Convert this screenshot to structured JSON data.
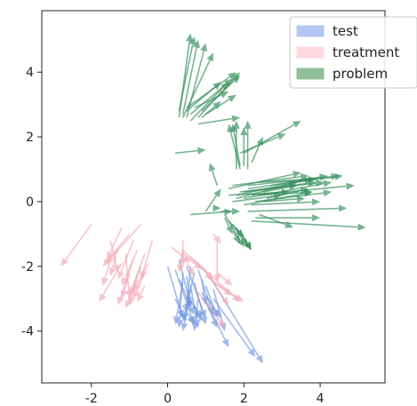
{
  "chart_data": {
    "type": "scatter",
    "title": "",
    "xlabel": "",
    "ylabel": "",
    "xlim": [
      -3.3,
      5.7
    ],
    "ylim": [
      -5.6,
      5.9
    ],
    "xticks": [
      "-2",
      "0",
      "2",
      "4"
    ],
    "yticks": [
      "-4",
      "-2",
      "0",
      "2",
      "4"
    ],
    "xtick_values": [
      -2,
      0,
      2,
      4
    ],
    "ytick_values": [
      -4,
      -2,
      0,
      2,
      4
    ],
    "grid": false,
    "legend_position": "top-right",
    "series": [
      {
        "name": "test",
        "color": "#6f95e0",
        "legend_color": "#b3c7f3",
        "arrows": [
          [
            0.0,
            -2.0,
            0.4,
            -3.6
          ],
          [
            0.2,
            -2.1,
            0.7,
            -3.8
          ],
          [
            0.4,
            -2.2,
            0.3,
            -3.9
          ],
          [
            0.5,
            -2.0,
            1.0,
            -3.6
          ],
          [
            0.3,
            -1.8,
            0.6,
            -3.2
          ],
          [
            0.6,
            -2.0,
            0.5,
            -3.4
          ],
          [
            0.8,
            -2.1,
            1.2,
            -3.5
          ],
          [
            0.7,
            -2.2,
            0.4,
            -3.7
          ],
          [
            0.4,
            -2.5,
            0.2,
            -3.8
          ],
          [
            0.6,
            -2.6,
            0.8,
            -3.9
          ],
          [
            0.9,
            -2.4,
            1.0,
            -3.2
          ],
          [
            1.0,
            -2.6,
            1.3,
            -3.6
          ],
          [
            0.9,
            -2.8,
            1.6,
            -4.5
          ],
          [
            1.2,
            -2.7,
            1.5,
            -4.0
          ],
          [
            0.5,
            -2.3,
            0.6,
            -3.3
          ],
          [
            0.3,
            -2.4,
            0.7,
            -3.5
          ],
          [
            0.7,
            -2.5,
            1.0,
            -3.8
          ],
          [
            1.1,
            -2.3,
            2.5,
            -5.0
          ],
          [
            1.2,
            -3.0,
            2.3,
            -4.8
          ],
          [
            0.5,
            -2.9,
            0.9,
            -3.6
          ],
          [
            0.8,
            -3.0,
            0.7,
            -4.0
          ],
          [
            0.2,
            -3.0,
            0.5,
            -3.7
          ],
          [
            0.6,
            -2.7,
            0.4,
            -4.0
          ],
          [
            1.0,
            -3.1,
            1.3,
            -3.9
          ],
          [
            0.4,
            -3.2,
            0.7,
            -3.8
          ],
          [
            0.7,
            -3.2,
            0.9,
            -3.7
          ],
          [
            1.0,
            -2.9,
            1.4,
            -3.6
          ]
        ]
      },
      {
        "name": "treatment",
        "color": "#f4a6b5",
        "legend_color": "#ffd7de",
        "arrows": [
          [
            -2.0,
            -0.7,
            -2.8,
            -2.0
          ],
          [
            -1.2,
            -0.8,
            -1.6,
            -1.8
          ],
          [
            -0.7,
            -0.7,
            -1.6,
            -1.9
          ],
          [
            -1.0,
            -1.0,
            -1.7,
            -2.0
          ],
          [
            -1.5,
            -1.2,
            -1.3,
            -2.2
          ],
          [
            -0.9,
            -1.2,
            -1.3,
            -2.4
          ],
          [
            -0.8,
            -1.5,
            -1.2,
            -2.6
          ],
          [
            -0.6,
            -1.6,
            -1.0,
            -2.9
          ],
          [
            -1.1,
            -1.6,
            -1.0,
            -3.0
          ],
          [
            -1.2,
            -1.9,
            -1.8,
            -3.1
          ],
          [
            -0.9,
            -1.8,
            -1.3,
            -3.2
          ],
          [
            -0.7,
            -2.0,
            -1.1,
            -3.3
          ],
          [
            -0.5,
            -1.9,
            -0.9,
            -2.8
          ],
          [
            -1.0,
            -2.2,
            -1.2,
            -3.0
          ],
          [
            -0.6,
            -2.2,
            -0.9,
            -3.0
          ],
          [
            -1.3,
            -1.4,
            -1.5,
            -2.3
          ],
          [
            -0.8,
            -2.4,
            -1.0,
            -3.2
          ],
          [
            -0.6,
            -2.6,
            -0.8,
            -3.1
          ],
          [
            -1.5,
            -1.8,
            -1.7,
            -2.6
          ],
          [
            -0.4,
            -1.2,
            -0.7,
            -2.4
          ],
          [
            0.1,
            -1.4,
            0.6,
            -1.9
          ],
          [
            0.4,
            -1.6,
            0.9,
            -2.1
          ],
          [
            0.4,
            -1.5,
            1.2,
            -2.4
          ],
          [
            0.6,
            -1.7,
            1.9,
            -3.1
          ],
          [
            0.9,
            -2.0,
            1.6,
            -3.2
          ],
          [
            1.0,
            -2.3,
            2.0,
            -3.1
          ],
          [
            1.2,
            -2.5,
            1.7,
            -2.9
          ],
          [
            1.3,
            -2.2,
            1.7,
            -2.6
          ],
          [
            0.8,
            -2.8,
            1.5,
            -3.9
          ],
          [
            1.3,
            -1.2,
            1.3,
            -2.5
          ],
          [
            1.2,
            -1.0,
            1.4,
            -1.3
          ],
          [
            0.4,
            -1.2,
            0.4,
            -2.0
          ],
          [
            0.4,
            -1.5,
            0.3,
            -2.2
          ],
          [
            0.5,
            -1.9,
            0.7,
            -2.3
          ]
        ]
      },
      {
        "name": "problem",
        "color": "#2e8b57",
        "legend_color": "#8fbf99",
        "arrows": [
          [
            0.3,
            2.6,
            0.6,
            5.2
          ],
          [
            0.4,
            2.7,
            0.8,
            5.0
          ],
          [
            0.5,
            2.6,
            1.0,
            4.9
          ],
          [
            0.3,
            2.8,
            0.7,
            5.1
          ],
          [
            0.4,
            2.6,
            1.2,
            4.6
          ],
          [
            0.5,
            2.8,
            1.4,
            3.7
          ],
          [
            0.5,
            2.9,
            1.8,
            4.0
          ],
          [
            0.6,
            2.7,
            1.7,
            3.8
          ],
          [
            0.7,
            2.9,
            1.6,
            3.4
          ],
          [
            0.8,
            2.6,
            1.9,
            4.0
          ],
          [
            0.9,
            2.8,
            1.9,
            3.9
          ],
          [
            1.0,
            2.7,
            1.8,
            3.3
          ],
          [
            0.6,
            2.5,
            1.6,
            3.7
          ],
          [
            0.9,
            2.6,
            1.4,
            3.1
          ],
          [
            0.8,
            2.4,
            1.9,
            2.6
          ],
          [
            1.8,
            1.0,
            1.8,
            2.5
          ],
          [
            1.9,
            1.1,
            1.7,
            2.4
          ],
          [
            1.9,
            1.0,
            1.6,
            2.4
          ],
          [
            2.0,
            1.1,
            2.0,
            2.3
          ],
          [
            2.1,
            1.0,
            2.1,
            2.5
          ],
          [
            2.2,
            1.2,
            2.5,
            2.0
          ],
          [
            1.9,
            1.5,
            3.1,
            2.1
          ],
          [
            2.0,
            1.5,
            3.5,
            2.5
          ],
          [
            0.2,
            1.5,
            1.0,
            1.6
          ],
          [
            1.3,
            0.5,
            1.1,
            1.2
          ],
          [
            1.0,
            -0.3,
            1.4,
            0.4
          ],
          [
            0.6,
            -0.4,
            1.7,
            -0.3
          ],
          [
            1.2,
            -0.2,
            1.4,
            -0.2
          ],
          [
            1.4,
            -0.3,
            1.9,
            -0.3
          ],
          [
            1.5,
            -0.5,
            1.7,
            -1.0
          ],
          [
            1.5,
            -0.4,
            2.0,
            -1.4
          ],
          [
            1.6,
            -0.6,
            2.0,
            -1.1
          ],
          [
            1.7,
            -0.7,
            2.1,
            -1.4
          ],
          [
            1.8,
            -0.8,
            2.2,
            -1.5
          ],
          [
            1.9,
            -0.9,
            2.2,
            -1.5
          ],
          [
            1.7,
            -0.9,
            1.9,
            -1.3
          ],
          [
            2.3,
            -0.5,
            4.0,
            -0.5
          ],
          [
            2.1,
            -0.3,
            4.7,
            -0.2
          ],
          [
            2.2,
            -0.6,
            5.2,
            -0.8
          ],
          [
            2.4,
            -0.4,
            3.3,
            -0.8
          ],
          [
            1.6,
            0.4,
            3.5,
            0.9
          ],
          [
            1.7,
            0.5,
            3.7,
            0.8
          ],
          [
            1.8,
            0.2,
            3.8,
            0.7
          ],
          [
            1.9,
            0.3,
            3.9,
            0.6
          ],
          [
            2.0,
            0.3,
            4.1,
            0.6
          ],
          [
            2.0,
            0.1,
            4.3,
            0.6
          ],
          [
            2.1,
            0.5,
            4.5,
            0.8
          ],
          [
            2.1,
            0.4,
            4.6,
            0.8
          ],
          [
            2.2,
            0.2,
            4.9,
            0.5
          ],
          [
            2.3,
            0.0,
            4.3,
            0.3
          ],
          [
            2.4,
            0.2,
            3.8,
            0.3
          ],
          [
            2.5,
            0.0,
            3.6,
            0.1
          ],
          [
            2.5,
            0.3,
            3.4,
            0.5
          ],
          [
            2.6,
            0.1,
            3.7,
            0.4
          ],
          [
            1.6,
            0.2,
            3.2,
            0.3
          ],
          [
            1.7,
            0.0,
            3.0,
            0.2
          ],
          [
            1.8,
            0.1,
            3.4,
            0.6
          ],
          [
            2.0,
            -0.1,
            3.8,
            0.3
          ],
          [
            2.2,
            -0.1,
            4.0,
            0.0
          ],
          [
            2.4,
            0.6,
            3.9,
            0.7
          ],
          [
            2.7,
            0.5,
            4.2,
            0.8
          ]
        ]
      }
    ]
  }
}
